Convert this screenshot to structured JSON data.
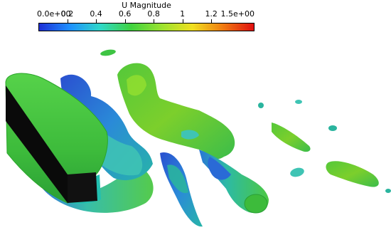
{
  "colorbar": {
    "title": "U Magnitude",
    "min_label": "0.0e+00",
    "max_label": "1.5e+00",
    "ticks": [
      "0.2",
      "0.4",
      "0.6",
      "0.8",
      "1",
      "1.2"
    ],
    "tick_values": [
      0.2,
      0.4,
      0.6,
      0.8,
      1.0,
      1.2
    ],
    "range": [
      0.0,
      1.5
    ],
    "colormap_stops": [
      "#1e2fd6",
      "#1e90ff",
      "#2fd8c8",
      "#3fd23f",
      "#9be22f",
      "#f0e020",
      "#f07a10",
      "#e01010"
    ]
  },
  "scene": {
    "colors": {
      "cylinder_body": "#3fc83f",
      "cylinder_edge": "#2aa52a",
      "cylinder_bottom_band": "#22c0b0",
      "dark_face": "#0a0a0a",
      "vortex_blue": "#2a5fd0",
      "vortex_cyan": "#27b4a8",
      "vortex_green": "#45c83c",
      "vortex_lime": "#7ccf2c"
    }
  }
}
